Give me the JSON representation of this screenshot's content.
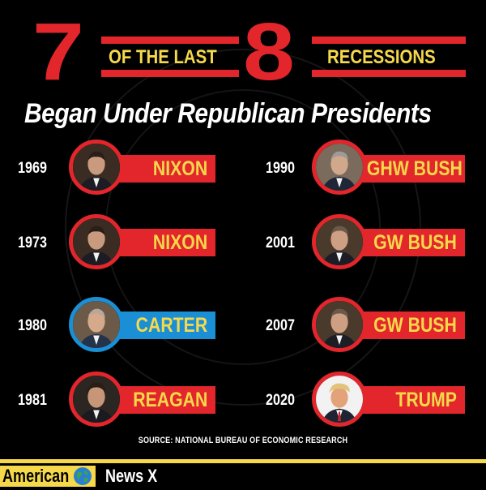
{
  "header": {
    "num_left": "7",
    "mid_text": "OF THE LAST",
    "num_right": "8",
    "right_text": "RECESSIONS",
    "subtitle": "Began Under Republican Presidents"
  },
  "rows_left": [
    {
      "year": "1969",
      "name": "NIXON",
      "party": "R",
      "icon": "nixon-portrait"
    },
    {
      "year": "1973",
      "name": "NIXON",
      "party": "R",
      "icon": "nixon-portrait"
    },
    {
      "year": "1980",
      "name": "CARTER",
      "party": "D",
      "icon": "carter-portrait"
    },
    {
      "year": "1981",
      "name": "REAGAN",
      "party": "R",
      "icon": "reagan-portrait"
    }
  ],
  "rows_right": [
    {
      "year": "1990",
      "name": "GHW BUSH",
      "party": "R",
      "icon": "ghw-bush-portrait"
    },
    {
      "year": "2001",
      "name": "GW BUSH",
      "party": "R",
      "icon": "gw-bush-portrait"
    },
    {
      "year": "2007",
      "name": "GW BUSH",
      "party": "R",
      "icon": "gw-bush-portrait"
    },
    {
      "year": "2020",
      "name": "TRUMP",
      "party": "R",
      "icon": "trump-portrait"
    }
  ],
  "source": "SOURCE: NATIONAL BUREAU OF ECONOMIC RESEARCH",
  "footer": {
    "brand_left": "American",
    "brand_right": "News X"
  },
  "colors": {
    "republican": "#e3262b",
    "democrat": "#1b8fd6",
    "accent_yellow": "#f6d94a",
    "background": "#000000"
  }
}
